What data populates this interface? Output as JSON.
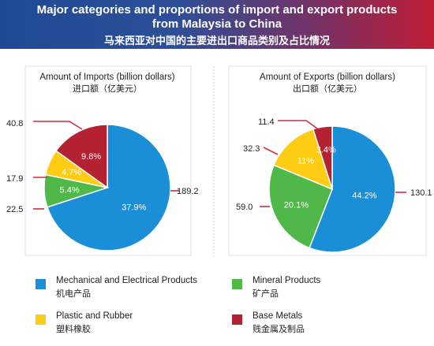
{
  "title": {
    "line1": "Major categories and proportions of import and export products",
    "line2": "from Malaysia to China",
    "line3": "马来西亚对中国的主要进出口商品类别及占比情况"
  },
  "colors": {
    "mechanical": "#1a8fd8",
    "mineral": "#4fb848",
    "plastic": "#ffcc14",
    "base_metals": "#b42232",
    "leader_line": "#d22d3c"
  },
  "chart_data": [
    {
      "type": "pie",
      "title": "Amount of Imports (billion dollars)",
      "subtitle": "进口额（亿美元）",
      "slices": [
        {
          "category": "Mechanical and Electrical Products",
          "value": 189.2,
          "percent": 37.9,
          "percent_label": "37.9%",
          "value_label": "189.2",
          "color": "#1a8fd8"
        },
        {
          "category": "Mineral Products",
          "value": 22.5,
          "percent": 5.4,
          "percent_label": "5.4%",
          "value_label": "22.5",
          "color": "#4fb848"
        },
        {
          "category": "Plastic and Rubber",
          "value": 17.9,
          "percent": 4.7,
          "percent_label": "4.7%",
          "value_label": "17.9",
          "color": "#ffcc14"
        },
        {
          "category": "Base Metals",
          "value": 40.8,
          "percent": 9.8,
          "percent_label": "9.8%",
          "value_label": "40.8",
          "color": "#b42232"
        }
      ]
    },
    {
      "type": "pie",
      "title": "Amount of Exports (billion dollars)",
      "subtitle": "出口额（亿美元）",
      "slices": [
        {
          "category": "Mechanical and Electrical Products",
          "value": 130.1,
          "percent": 44.2,
          "percent_label": "44.2%",
          "value_label": "130.1",
          "color": "#1a8fd8"
        },
        {
          "category": "Mineral Products",
          "value": 59.0,
          "percent": 20.1,
          "percent_label": "20.1%",
          "value_label": "59.0",
          "color": "#4fb848"
        },
        {
          "category": "Plastic and Rubber",
          "value": 32.3,
          "percent": 11,
          "percent_label": "11%",
          "value_label": "32.3",
          "color": "#ffcc14"
        },
        {
          "category": "Base Metals",
          "value": 11.4,
          "percent": 3.4,
          "percent_label": "3.4%",
          "value_label": "11.4",
          "color": "#b42232"
        }
      ]
    }
  ],
  "legend": [
    {
      "en": "Mechanical and Electrical Products",
      "zh": "机电产品",
      "color": "#1a8fd8"
    },
    {
      "en": "Mineral Products",
      "zh": "矿产品",
      "color": "#4fb848"
    },
    {
      "en": "Plastic and Rubber",
      "zh": "塑料橡胶",
      "color": "#ffcc14"
    },
    {
      "en": "Base Metals",
      "zh": "贱金属及制品",
      "color": "#b42232"
    }
  ]
}
